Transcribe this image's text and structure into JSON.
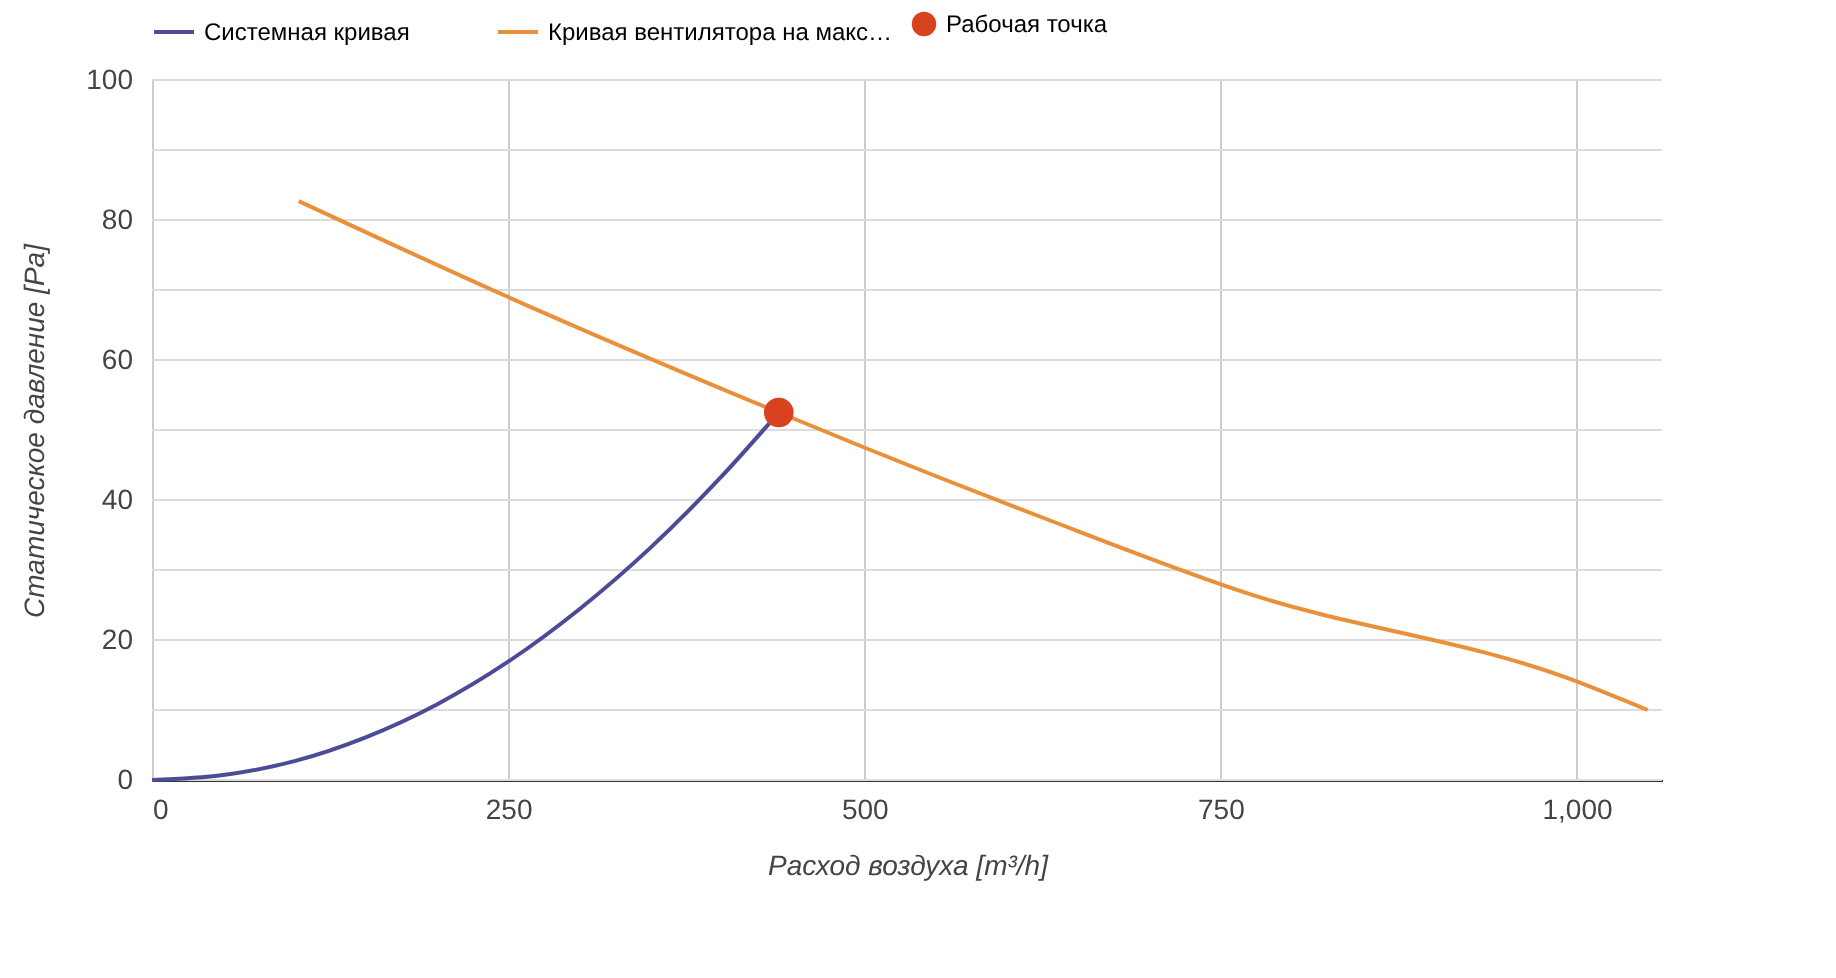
{
  "chart_data": {
    "type": "line",
    "xlabel": "Расход воздуха [m³/h]",
    "ylabel": "Статическое давление [Pa]",
    "xlim": [
      0,
      1060
    ],
    "xticks": [
      0,
      250,
      500,
      750,
      {
        "value": 1000,
        "label": "1,000"
      }
    ],
    "ylim": [
      0,
      100
    ],
    "yticks": [
      0,
      {
        "value": 10,
        "label": null
      },
      20,
      {
        "value": 30,
        "label": null
      },
      40,
      {
        "value": 50,
        "label": null
      },
      60,
      {
        "value": 70,
        "label": null
      },
      80,
      {
        "value": 90,
        "label": null
      },
      100
    ],
    "grid": true,
    "legend": "top",
    "marker": "none",
    "line_style": "solid",
    "series": [
      {
        "name": "Системная кривая",
        "color": "#4b4b96",
        "x": [
          0,
          50,
          100,
          150,
          200,
          250,
          300,
          350,
          400,
          440
        ],
        "values": [
          0,
          0.7,
          2.7,
          6.1,
          10.8,
          16.9,
          24.4,
          33.2,
          43.4,
          52.5
        ]
      },
      {
        "name": "Кривая вентилятора на макс…",
        "color": "#e8913a",
        "x": [
          103,
          250,
          440,
          500,
          625,
          767,
          1000,
          1050
        ],
        "values": [
          82.7,
          69,
          52.5,
          47.5,
          37.5,
          26.8,
          14.1,
          10
        ]
      },
      {
        "name": "Рабочая точка",
        "type": "scatter",
        "marker": "circle",
        "color": "#d9421e",
        "x": [
          440
        ],
        "values": [
          52.5
        ]
      }
    ]
  }
}
